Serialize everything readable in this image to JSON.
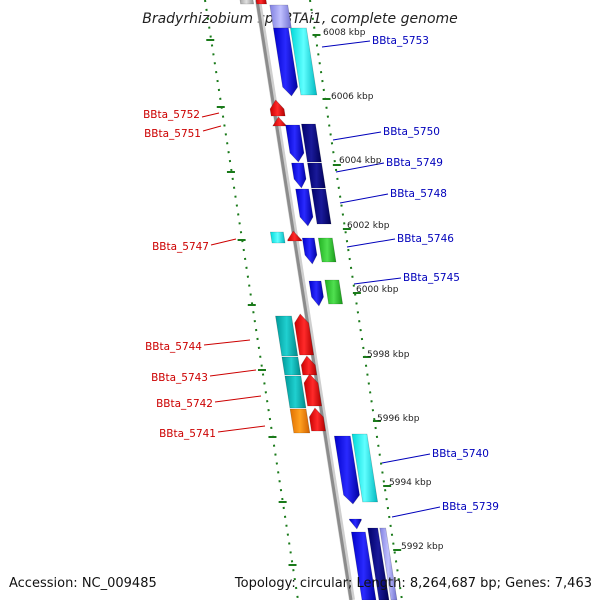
{
  "title": "Bradyrhizobium sp. BTAi1, complete genome",
  "footer": {
    "accession": "Accession: NC_009485",
    "topology": "Topology: circular; Length: 8,264,687 bp; Genes: 7,463"
  },
  "colors": {
    "label_left": "#cc0000",
    "label_right": "#0000bb",
    "tick": "#1a7a1a",
    "backbone": "#8c8c8c"
  },
  "kbp_marks": [
    "6008 kbp",
    "6006 kbp",
    "6004 kbp",
    "6002 kbp",
    "6000 kbp",
    "5998 kbp",
    "5996 kbp",
    "5994 kbp",
    "5992 kbp"
  ],
  "genes_right": [
    "BBta_5753",
    "BBta_5750",
    "BBta_5749",
    "BBta_5748",
    "BBta_5746",
    "BBta_5745",
    "BBta_5740",
    "BBta_5739"
  ],
  "genes_left": [
    "BBta_5752",
    "BBta_5751",
    "BBta_5747",
    "BBta_5744",
    "BBta_5743",
    "BBta_5742",
    "BBta_5741"
  ]
}
